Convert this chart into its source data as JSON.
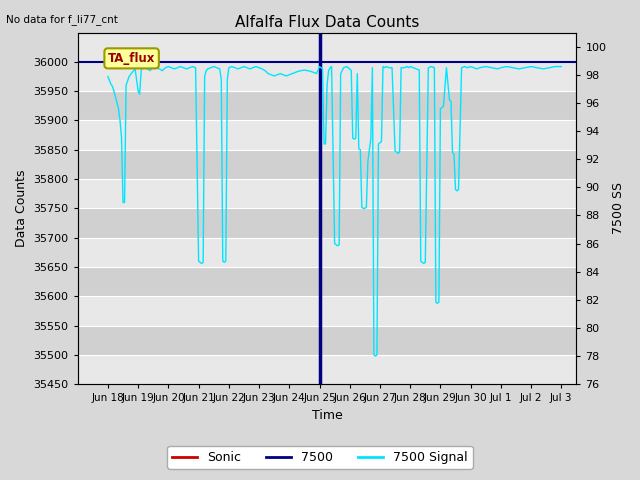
{
  "title": "Alfalfa Flux Data Counts",
  "subtitle": "No data for f_li77_cnt",
  "xlabel": "Time",
  "ylabel": "Data Counts",
  "ylabel_right": "7500 SS",
  "ylim_left": [
    35450,
    36050
  ],
  "ylim_right": [
    76,
    101
  ],
  "yticks_left": [
    35450,
    35500,
    35550,
    35600,
    35650,
    35700,
    35750,
    35800,
    35850,
    35900,
    35950,
    36000
  ],
  "yticks_right": [
    76,
    78,
    80,
    82,
    84,
    86,
    88,
    90,
    92,
    94,
    96,
    98,
    100
  ],
  "xtick_labels": [
    "Jun 18",
    "Jun 19",
    "Jun 20",
    "Jun 21",
    "Jun 22",
    "Jun 23",
    "Jun 24",
    "Jun 25",
    "Jun 26",
    "Jun 27",
    "Jun 28",
    "Jun 29",
    "Jun 30",
    "Jul 1",
    "Jul 2",
    "Jul 3"
  ],
  "background_color": "#d8d8d8",
  "plot_bg_color_light": "#e8e8e8",
  "plot_bg_color_dark": "#d0d0d0",
  "grid_color": "#ffffff",
  "annotation_box_label": "TA_flux",
  "annotation_box_bg": "#ffff99",
  "annotation_box_edge": "#999900",
  "annotation_text_color": "#990000",
  "sonic_color": "#cc0000",
  "li7500_color": "#000080",
  "signal_color": "#00e5ff",
  "legend_labels": [
    "Sonic",
    "7500",
    "7500 Signal"
  ],
  "signal_x": [
    1.0,
    1.05,
    1.1,
    1.15,
    1.2,
    1.25,
    1.3,
    1.35,
    1.4,
    1.45,
    1.5,
    1.55,
    1.6,
    1.7,
    1.8,
    1.9,
    2.0,
    2.05,
    2.1,
    2.15,
    2.2,
    2.3,
    2.4,
    2.5,
    2.6,
    2.7,
    2.8,
    2.9,
    3.0,
    3.1,
    3.2,
    3.3,
    3.4,
    3.5,
    3.6,
    3.7,
    3.8,
    3.9,
    4.0,
    4.05,
    4.1,
    4.15,
    4.2,
    4.25,
    4.3,
    4.4,
    4.5,
    4.6,
    4.7,
    4.75,
    4.8,
    4.85,
    4.9,
    4.95,
    5.0,
    5.1,
    5.2,
    5.3,
    5.4,
    5.5,
    5.6,
    5.7,
    5.8,
    5.9,
    6.0,
    6.1,
    6.2,
    6.3,
    6.4,
    6.5,
    6.6,
    6.7,
    6.8,
    6.9,
    7.0,
    7.1,
    7.2,
    7.3,
    7.4,
    7.5,
    7.6,
    7.7,
    7.8,
    7.9,
    8.0,
    8.05,
    8.1,
    8.15,
    8.2,
    8.25,
    8.3,
    8.35,
    8.4,
    8.5,
    8.55,
    8.6,
    8.65,
    8.7,
    8.8,
    8.9,
    8.95,
    9.0,
    9.05,
    9.1,
    9.15,
    9.2,
    9.25,
    9.3,
    9.35,
    9.4,
    9.45,
    9.5,
    9.55,
    9.6,
    9.65,
    9.7,
    9.75,
    9.8,
    9.85,
    9.9,
    9.95,
    10.0,
    10.05,
    10.1,
    10.15,
    10.2,
    10.3,
    10.4,
    10.5,
    10.55,
    10.6,
    10.65,
    10.7,
    10.8,
    10.9,
    10.95,
    11.0,
    11.1,
    11.2,
    11.3,
    11.35,
    11.4,
    11.45,
    11.5,
    11.6,
    11.7,
    11.8,
    11.85,
    11.9,
    11.95,
    12.0,
    12.05,
    12.1,
    12.2,
    12.3,
    12.35,
    12.4,
    12.45,
    12.5,
    12.55,
    12.6,
    12.7,
    12.8,
    12.9,
    13.0,
    13.1,
    13.2,
    13.3,
    13.5,
    13.7,
    13.9,
    14.0,
    14.2,
    14.4,
    14.6,
    14.8,
    15.0,
    15.2,
    15.4,
    15.6,
    15.8,
    16.0
  ],
  "signal_y": [
    35975,
    35968,
    35962,
    35958,
    35950,
    35940,
    35930,
    35920,
    35900,
    35870,
    35760,
    35760,
    35960,
    35975,
    35982,
    35988,
    35950,
    35945,
    35985,
    35990,
    35992,
    35988,
    35985,
    35992,
    35990,
    35988,
    35985,
    35990,
    35992,
    35990,
    35988,
    35990,
    35992,
    35990,
    35988,
    35990,
    35992,
    35990,
    35660,
    35658,
    35656,
    35658,
    35975,
    35985,
    35988,
    35990,
    35992,
    35990,
    35988,
    35970,
    35660,
    35658,
    35660,
    35970,
    35990,
    35992,
    35990,
    35988,
    35990,
    35992,
    35990,
    35988,
    35990,
    35992,
    35990,
    35988,
    35985,
    35980,
    35978,
    35976,
    35978,
    35980,
    35978,
    35976,
    35978,
    35980,
    35982,
    35984,
    35985,
    35986,
    35985,
    35984,
    35982,
    35980,
    35992,
    35990,
    35988,
    35860,
    35860,
    35960,
    35985,
    35990,
    35992,
    35690,
    35688,
    35686,
    35688,
    35980,
    35990,
    35992,
    35990,
    35988,
    35985,
    35870,
    35868,
    35870,
    35980,
    35852,
    35850,
    35752,
    35750,
    35750,
    35752,
    35830,
    35850,
    35870,
    35990,
    35500,
    35498,
    35500,
    35860,
    35862,
    35864,
    35992,
    35990,
    35992,
    35990,
    35990,
    35848,
    35846,
    35844,
    35846,
    35990,
    35990,
    35992,
    35990,
    35992,
    35990,
    35988,
    35986,
    35660,
    35658,
    35656,
    35658,
    35990,
    35992,
    35990,
    35590,
    35588,
    35590,
    35920,
    35922,
    35924,
    35990,
    35935,
    35933,
    35845,
    35843,
    35782,
    35780,
    35782,
    35990,
    35992,
    35990,
    35992,
    35990,
    35988,
    35990,
    35992,
    35990,
    35988,
    35990,
    35992,
    35990,
    35988,
    35990,
    35992,
    35990,
    35988,
    35990,
    35992,
    35992
  ]
}
